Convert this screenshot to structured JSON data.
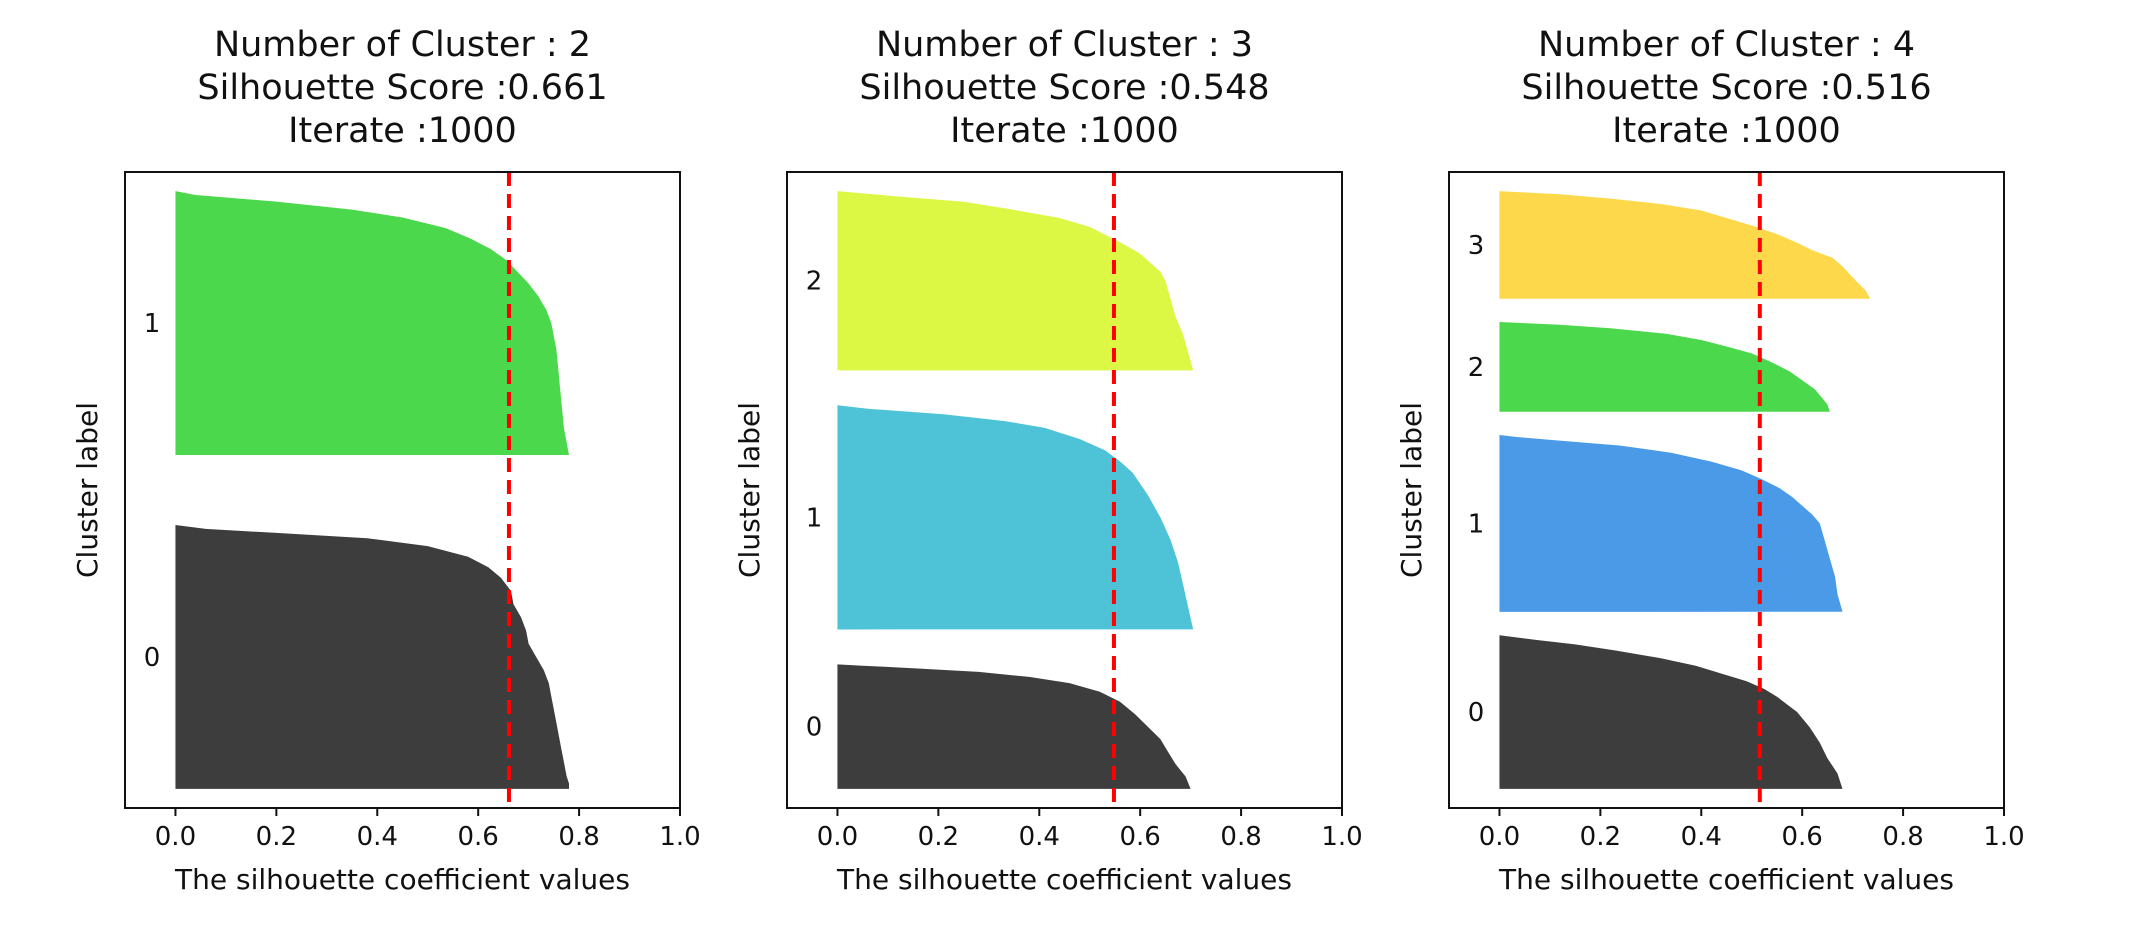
{
  "chart_data": [
    {
      "type": "silhouette",
      "title_lines": [
        "Number of Cluster : 2",
        "Silhouette Score :0.661",
        "Iterate :1000"
      ],
      "xlabel": "The silhouette coefficient values",
      "ylabel": "Cluster label",
      "xlim": [
        -0.1,
        1.0
      ],
      "xticks": [
        0.0,
        0.2,
        0.4,
        0.6,
        0.8,
        1.0
      ],
      "xtick_labels": [
        "0.0",
        "0.2",
        "0.4",
        "0.6",
        "0.8",
        "1.0"
      ],
      "avg_score": 0.661,
      "avg_line_color": "#ff0000",
      "clusters": [
        {
          "label": "0",
          "size": 1000,
          "color": "#3d3d3d",
          "profile": [
            [
              0,
              0.78
            ],
            [
              0.02,
              0.78
            ],
            [
              0.05,
              0.775
            ],
            [
              0.1,
              0.77
            ],
            [
              0.15,
              0.765
            ],
            [
              0.2,
              0.76
            ],
            [
              0.25,
              0.755
            ],
            [
              0.3,
              0.75
            ],
            [
              0.35,
              0.745
            ],
            [
              0.4,
              0.74
            ],
            [
              0.45,
              0.73
            ],
            [
              0.5,
              0.715
            ],
            [
              0.55,
              0.7
            ],
            [
              0.6,
              0.695
            ],
            [
              0.65,
              0.685
            ],
            [
              0.7,
              0.67
            ],
            [
              0.75,
              0.665
            ],
            [
              0.8,
              0.645
            ],
            [
              0.84,
              0.62
            ],
            [
              0.88,
              0.58
            ],
            [
              0.92,
              0.5
            ],
            [
              0.95,
              0.38
            ],
            [
              0.97,
              0.2
            ],
            [
              0.985,
              0.06
            ],
            [
              1,
              0.0
            ]
          ]
        },
        {
          "label": "1",
          "size": 1000,
          "color": "#4cd84c",
          "profile": [
            [
              0,
              0.78
            ],
            [
              0.05,
              0.775
            ],
            [
              0.1,
              0.77
            ],
            [
              0.2,
              0.765
            ],
            [
              0.3,
              0.76
            ],
            [
              0.4,
              0.755
            ],
            [
              0.5,
              0.745
            ],
            [
              0.55,
              0.735
            ],
            [
              0.6,
              0.72
            ],
            [
              0.65,
              0.7
            ],
            [
              0.7,
              0.675
            ],
            [
              0.74,
              0.655
            ],
            [
              0.78,
              0.625
            ],
            [
              0.82,
              0.585
            ],
            [
              0.86,
              0.535
            ],
            [
              0.9,
              0.45
            ],
            [
              0.93,
              0.35
            ],
            [
              0.96,
              0.2
            ],
            [
              0.985,
              0.04
            ],
            [
              1,
              0.0
            ]
          ]
        }
      ]
    },
    {
      "type": "silhouette",
      "title_lines": [
        "Number of Cluster : 3",
        "Silhouette Score :0.548",
        "Iterate :1000"
      ],
      "xlabel": "The silhouette coefficient values",
      "ylabel": "Cluster label",
      "xlim": [
        -0.1,
        1.0
      ],
      "xticks": [
        0.0,
        0.2,
        0.4,
        0.6,
        0.8,
        1.0
      ],
      "xtick_labels": [
        "0.0",
        "0.2",
        "0.4",
        "0.6",
        "0.8",
        "1.0"
      ],
      "avg_score": 0.548,
      "avg_line_color": "#ff0000",
      "clusters": [
        {
          "label": "0",
          "size": 500,
          "color": "#3d3d3d",
          "profile": [
            [
              0,
              0.7
            ],
            [
              0.05,
              0.695
            ],
            [
              0.1,
              0.69
            ],
            [
              0.15,
              0.68
            ],
            [
              0.2,
              0.67
            ],
            [
              0.3,
              0.655
            ],
            [
              0.4,
              0.64
            ],
            [
              0.5,
              0.615
            ],
            [
              0.6,
              0.59
            ],
            [
              0.7,
              0.56
            ],
            [
              0.78,
              0.52
            ],
            [
              0.85,
              0.46
            ],
            [
              0.9,
              0.38
            ],
            [
              0.94,
              0.28
            ],
            [
              0.97,
              0.15
            ],
            [
              0.99,
              0.05
            ],
            [
              1,
              0.0
            ]
          ]
        },
        {
          "label": "1",
          "size": 900,
          "color": "#4ec2d6",
          "profile": [
            [
              0,
              0.705
            ],
            [
              0.05,
              0.7
            ],
            [
              0.1,
              0.695
            ],
            [
              0.2,
              0.685
            ],
            [
              0.3,
              0.675
            ],
            [
              0.4,
              0.66
            ],
            [
              0.5,
              0.64
            ],
            [
              0.6,
              0.615
            ],
            [
              0.7,
              0.585
            ],
            [
              0.75,
              0.56
            ],
            [
              0.8,
              0.53
            ],
            [
              0.85,
              0.48
            ],
            [
              0.9,
              0.41
            ],
            [
              0.93,
              0.33
            ],
            [
              0.96,
              0.21
            ],
            [
              0.985,
              0.06
            ],
            [
              1,
              0.0
            ]
          ]
        },
        {
          "label": "2",
          "size": 720,
          "color": "#ddf745",
          "profile": [
            [
              0,
              0.705
            ],
            [
              0.05,
              0.7
            ],
            [
              0.1,
              0.695
            ],
            [
              0.2,
              0.685
            ],
            [
              0.3,
              0.67
            ],
            [
              0.4,
              0.66
            ],
            [
              0.5,
              0.65
            ],
            [
              0.55,
              0.64
            ],
            [
              0.6,
              0.62
            ],
            [
              0.65,
              0.6
            ],
            [
              0.7,
              0.57
            ],
            [
              0.75,
              0.535
            ],
            [
              0.8,
              0.5
            ],
            [
              0.85,
              0.44
            ],
            [
              0.9,
              0.34
            ],
            [
              0.94,
              0.25
            ],
            [
              0.97,
              0.12
            ],
            [
              1,
              0.0
            ]
          ]
        }
      ]
    },
    {
      "type": "silhouette",
      "title_lines": [
        "Number of Cluster : 4",
        "Silhouette Score :0.516",
        "Iterate :1000"
      ],
      "xlabel": "The silhouette coefficient values",
      "ylabel": "Cluster label",
      "xlim": [
        -0.1,
        1.0
      ],
      "xticks": [
        0.0,
        0.2,
        0.4,
        0.6,
        0.8,
        1.0
      ],
      "xtick_labels": [
        "0.0",
        "0.2",
        "0.4",
        "0.6",
        "0.8",
        "1.0"
      ],
      "avg_score": 0.516,
      "avg_line_color": "#ff0000",
      "clusters": [
        {
          "label": "0",
          "size": 600,
          "color": "#3d3d3d",
          "profile": [
            [
              0,
              0.68
            ],
            [
              0.05,
              0.675
            ],
            [
              0.1,
              0.67
            ],
            [
              0.15,
              0.66
            ],
            [
              0.2,
              0.65
            ],
            [
              0.3,
              0.635
            ],
            [
              0.4,
              0.615
            ],
            [
              0.5,
              0.59
            ],
            [
              0.55,
              0.57
            ],
            [
              0.6,
              0.55
            ],
            [
              0.65,
              0.525
            ],
            [
              0.7,
              0.49
            ],
            [
              0.75,
              0.44
            ],
            [
              0.8,
              0.39
            ],
            [
              0.85,
              0.32
            ],
            [
              0.9,
              0.23
            ],
            [
              0.94,
              0.15
            ],
            [
              0.97,
              0.07
            ],
            [
              1,
              0.0
            ]
          ]
        },
        {
          "label": "1",
          "size": 690,
          "color": "#4a9ae8",
          "profile": [
            [
              0,
              0.68
            ],
            [
              0.05,
              0.675
            ],
            [
              0.1,
              0.67
            ],
            [
              0.2,
              0.665
            ],
            [
              0.3,
              0.655
            ],
            [
              0.4,
              0.645
            ],
            [
              0.5,
              0.635
            ],
            [
              0.55,
              0.62
            ],
            [
              0.6,
              0.6
            ],
            [
              0.65,
              0.58
            ],
            [
              0.7,
              0.555
            ],
            [
              0.75,
              0.52
            ],
            [
              0.8,
              0.48
            ],
            [
              0.85,
              0.42
            ],
            [
              0.9,
              0.34
            ],
            [
              0.94,
              0.24
            ],
            [
              0.97,
              0.11
            ],
            [
              0.99,
              0.03
            ],
            [
              1,
              0.0
            ]
          ]
        },
        {
          "label": "2",
          "size": 350,
          "color": "#4cd84c",
          "profile": [
            [
              0,
              0.655
            ],
            [
              0.08,
              0.65
            ],
            [
              0.15,
              0.64
            ],
            [
              0.25,
              0.625
            ],
            [
              0.35,
              0.6
            ],
            [
              0.45,
              0.575
            ],
            [
              0.55,
              0.54
            ],
            [
              0.65,
              0.5
            ],
            [
              0.72,
              0.455
            ],
            [
              0.8,
              0.4
            ],
            [
              0.87,
              0.33
            ],
            [
              0.93,
              0.22
            ],
            [
              0.97,
              0.12
            ],
            [
              1,
              0.0
            ]
          ]
        },
        {
          "label": "3",
          "size": 420,
          "color": "#fdd84b",
          "profile": [
            [
              0,
              0.735
            ],
            [
              0.08,
              0.725
            ],
            [
              0.15,
              0.71
            ],
            [
              0.2,
              0.7
            ],
            [
              0.3,
              0.68
            ],
            [
              0.38,
              0.66
            ],
            [
              0.45,
              0.62
            ],
            [
              0.52,
              0.59
            ],
            [
              0.6,
              0.55
            ],
            [
              0.68,
              0.5
            ],
            [
              0.75,
              0.45
            ],
            [
              0.82,
              0.4
            ],
            [
              0.88,
              0.32
            ],
            [
              0.93,
              0.22
            ],
            [
              0.97,
              0.12
            ],
            [
              1,
              0.0
            ]
          ]
        }
      ]
    }
  ]
}
